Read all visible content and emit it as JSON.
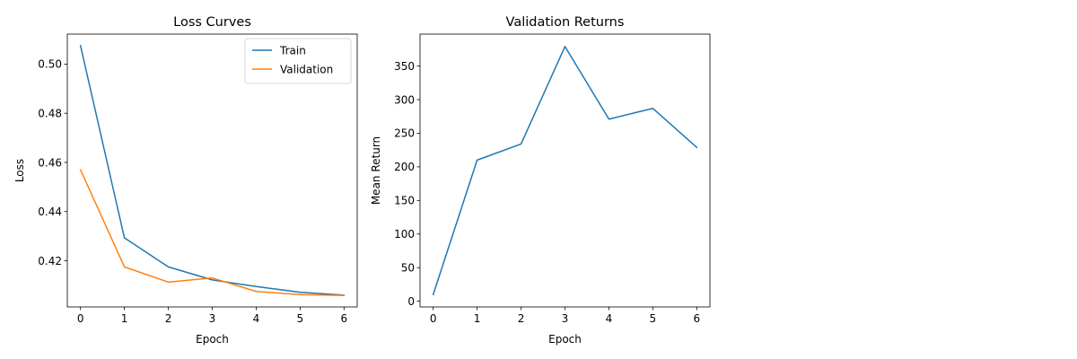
{
  "chart_data": [
    {
      "type": "line",
      "title": "Loss Curves",
      "xlabel": "Epoch",
      "ylabel": "Loss",
      "x": [
        0,
        1,
        2,
        3,
        4,
        5,
        6
      ],
      "xticks": [
        "0",
        "1",
        "2",
        "3",
        "4",
        "5",
        "6"
      ],
      "yticks": [
        "0.42",
        "0.44",
        "0.46",
        "0.48",
        "0.50"
      ],
      "ytick_values": [
        0.42,
        0.44,
        0.46,
        0.48,
        0.5
      ],
      "xlim": [
        -0.3,
        6.3
      ],
      "ylim": [
        0.4012,
        0.5122
      ],
      "grid": false,
      "legend": "top-right",
      "series": [
        {
          "name": "Train",
          "color": "#1f77b4",
          "values": [
            0.5075,
            0.4293,
            0.4175,
            0.4122,
            0.4095,
            0.4072,
            0.406
          ]
        },
        {
          "name": "Validation",
          "color": "#ff7f0e",
          "values": [
            0.457,
            0.4175,
            0.4113,
            0.413,
            0.4075,
            0.4062,
            0.4059
          ]
        }
      ]
    },
    {
      "type": "line",
      "title": "Validation Returns",
      "xlabel": "Epoch",
      "ylabel": "Mean Return",
      "x": [
        0,
        1,
        2,
        3,
        4,
        5,
        6
      ],
      "xticks": [
        "0",
        "1",
        "2",
        "3",
        "4",
        "5",
        "6"
      ],
      "yticks": [
        "0",
        "50",
        "100",
        "150",
        "200",
        "250",
        "300",
        "350"
      ],
      "ytick_values": [
        0,
        50,
        100,
        150,
        200,
        250,
        300,
        350
      ],
      "xlim": [
        -0.3,
        6.3
      ],
      "ylim": [
        -8.5,
        397.5
      ],
      "grid": false,
      "legend": "none",
      "series": [
        {
          "color": "#1f77b4",
          "values": [
            10,
            210,
            234,
            379,
            271,
            287,
            229
          ]
        }
      ]
    }
  ]
}
